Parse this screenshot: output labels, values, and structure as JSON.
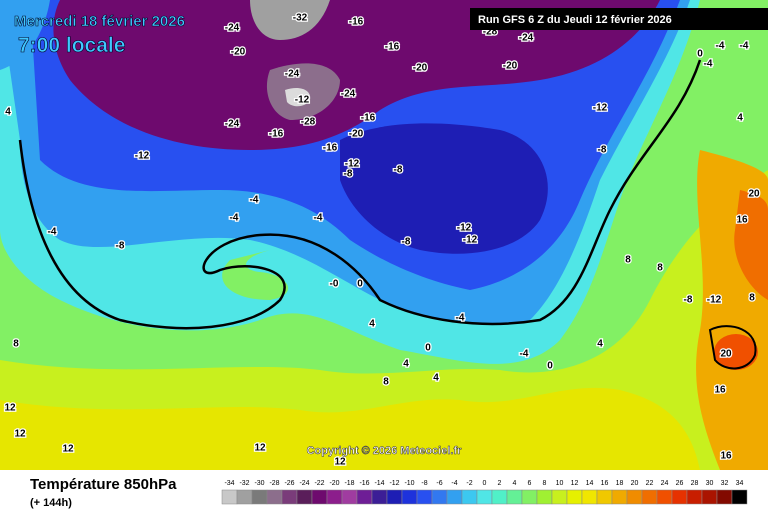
{
  "header": {
    "date": "Mercredi 18 février 2026",
    "time": "7:00 locale",
    "run": "Run GFS 6 Z du Jeudi 12 février 2026"
  },
  "copyright": "Copyright © 2026 Meteociel.fr",
  "footer": {
    "title": "Température 850hPa",
    "lead": "(+ 144h)"
  },
  "map": {
    "contour_labels": [
      "-24",
      "-32",
      "-16",
      "-20",
      "-16",
      "-20",
      "-24",
      "-24",
      "-12",
      "-24",
      "-16",
      "-28",
      "-20",
      "-16",
      "-16",
      "-12",
      "-8",
      "-12",
      "-8",
      "-12",
      "-8",
      "-20",
      "-24",
      "-28",
      "-4",
      "-4",
      "-4",
      "-4",
      "-8",
      "-8",
      "-12",
      "-12",
      "-0",
      "0",
      "4",
      "-4",
      "0",
      "4",
      "4",
      "8",
      "-4",
      "0",
      "4",
      "8",
      "8",
      "-8",
      "-12",
      "8",
      "16",
      "20",
      "20",
      "16",
      "8",
      "12",
      "12",
      "12",
      "12",
      "12",
      "16",
      "0",
      "-4",
      "-4",
      "-4",
      "4",
      "4"
    ]
  },
  "colorbar": {
    "ticks": [
      -34,
      -32,
      -30,
      -28,
      -26,
      -24,
      -22,
      -20,
      -18,
      -16,
      -14,
      -12,
      -10,
      -8,
      -6,
      -4,
      -2,
      0,
      2,
      4,
      6,
      8,
      10,
      12,
      14,
      16,
      18,
      20,
      22,
      24,
      26,
      28,
      30,
      32,
      34
    ],
    "colors": [
      "#c8c8c8",
      "#a0a0a0",
      "#7a7a7a",
      "#8c6e8c",
      "#7a3c7a",
      "#5a1e5a",
      "#6e0a6e",
      "#8c1e8c",
      "#a03ca0",
      "#6e1e96",
      "#3c1e96",
      "#1e1eb4",
      "#1e32dc",
      "#2850f0",
      "#3278f0",
      "#32a0f0",
      "#3cc8f0",
      "#50e6e6",
      "#50f0c8",
      "#64f096",
      "#82f064",
      "#a0f032",
      "#c8f01e",
      "#e6f000",
      "#f0e600",
      "#f0c800",
      "#f0aa00",
      "#f08c00",
      "#f06e00",
      "#f05000",
      "#e63200",
      "#c81e00",
      "#aa1400",
      "#820a00",
      "#000000"
    ]
  }
}
